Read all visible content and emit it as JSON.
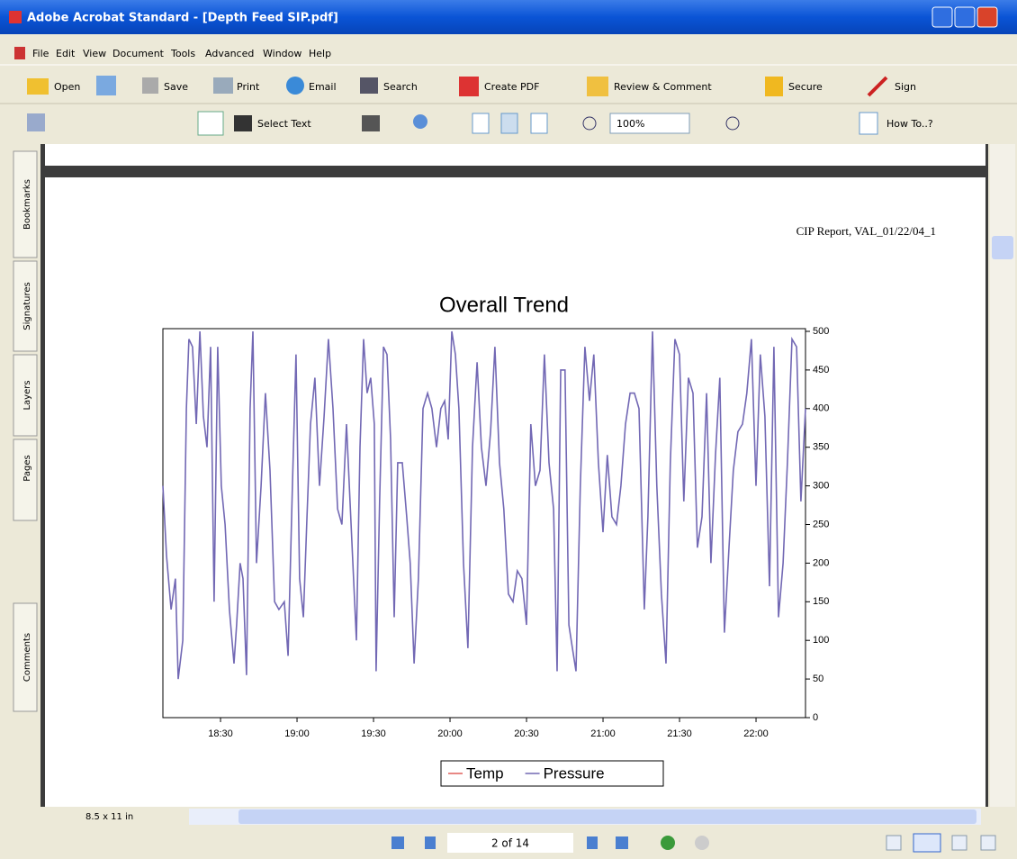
{
  "window": {
    "title": "Adobe Acrobat Standard - [Depth Feed SIP.pdf]"
  },
  "menu": {
    "items": [
      "File",
      "Edit",
      "View",
      "Document",
      "Tools",
      "Advanced",
      "Window",
      "Help"
    ]
  },
  "toolbar1": {
    "buttons": [
      "Open",
      "Save",
      "Print",
      "Email",
      "Search",
      "Create PDF",
      "Review & Comment",
      "Secure",
      "Sign"
    ]
  },
  "toolbar2": {
    "buttons": [
      "Select Text",
      "100%",
      "How To..?"
    ]
  },
  "nav_tabs": [
    "Bookmarks",
    "Signatures",
    "Layers",
    "Pages",
    "Comments"
  ],
  "document": {
    "header_text": "CIP Report,  VAL_01/22/04_1"
  },
  "status": {
    "page_size": "8.5 x 11 in",
    "page_indicator": "2 of 14"
  },
  "chart_data": {
    "type": "line",
    "title": "Overall Trend",
    "x": [
      1087.4,
      1088.8,
      1090.6,
      1092.3,
      1093.4,
      1095.2,
      1096.6,
      1097.6,
      1099.0,
      1100.5,
      1101.9,
      1103.3,
      1104.7,
      1106.1,
      1107.5,
      1108.9,
      1110.3,
      1111.8,
      1113.5,
      1115.3,
      1116.3,
      1117.7,
      1118.8,
      1120.2,
      1121.6,
      1122.7,
      1124.1,
      1125.9,
      1127.6,
      1129.4,
      1131.2,
      1132.9,
      1135.0,
      1136.5,
      1138.2,
      1139.6,
      1141.0,
      1142.5,
      1143.9,
      1145.3,
      1147.0,
      1148.8,
      1150.6,
      1152.3,
      1154.1,
      1155.9,
      1157.6,
      1159.4,
      1161.2,
      1163.3,
      1164.7,
      1166.1,
      1167.5,
      1168.9,
      1170.3,
      1171.0,
      1172.4,
      1173.9,
      1175.3,
      1176.7,
      1178.1,
      1179.5,
      1181.3,
      1183.0,
      1184.4,
      1185.9,
      1187.6,
      1189.4,
      1191.2,
      1192.9,
      1194.7,
      1196.4,
      1197.9,
      1199.3,
      1200.7,
      1202.1,
      1203.5,
      1205.3,
      1207.0,
      1208.8,
      1210.6,
      1212.3,
      1214.1,
      1215.9,
      1217.6,
      1219.4,
      1221.1,
      1222.9,
      1224.7,
      1226.4,
      1228.2,
      1230.0,
      1231.7,
      1233.5,
      1235.3,
      1237.0,
      1238.8,
      1240.6,
      1242.0,
      1243.4,
      1245.1,
      1246.6,
      1248.0,
      1249.4,
      1251.1,
      1252.9,
      1254.7,
      1256.4,
      1258.2,
      1260.0,
      1261.7,
      1263.5,
      1265.3,
      1267.0,
      1268.8,
      1270.6,
      1272.3,
      1274.1,
      1276.2,
      1277.6,
      1279.4,
      1281.1,
      1282.9,
      1284.7,
      1286.4,
      1288.2,
      1290.0,
      1291.7,
      1293.5,
      1295.3,
      1297.0,
      1298.8,
      1300.6,
      1302.3,
      1304.1,
      1305.8,
      1307.6,
      1309.4,
      1311.1,
      1312.9,
      1314.7,
      1316.4,
      1318.2,
      1320.0,
      1321.7,
      1323.5,
      1325.3,
      1327.0,
      1328.8,
      1330.6,
      1332.3,
      1334.1,
      1335.9,
      1337.6,
      1339.4
    ],
    "series": [
      {
        "name": "Temp",
        "color": "#e0605a",
        "values": [
          null,
          null,
          null,
          null,
          null,
          null,
          null,
          null,
          null,
          null,
          null,
          null,
          null,
          null,
          null,
          null,
          null,
          null,
          null,
          null,
          null,
          null,
          null,
          null,
          null,
          null,
          null,
          null,
          null,
          null,
          null,
          null,
          null,
          null,
          null,
          null,
          null,
          null,
          null,
          null,
          null,
          null,
          null,
          null,
          null,
          null,
          null,
          null,
          null,
          null,
          null,
          null,
          null,
          null,
          null,
          null,
          null,
          null,
          null,
          null,
          null,
          null,
          null,
          null,
          null,
          null,
          null,
          null,
          null,
          null,
          null,
          null,
          null,
          null,
          null,
          null,
          null,
          null,
          null,
          null,
          null,
          null,
          null,
          null,
          null,
          null,
          null,
          null,
          null,
          null,
          null,
          null,
          null,
          null,
          null,
          null,
          null,
          null,
          null,
          null,
          null,
          null,
          null,
          null,
          null,
          null,
          null,
          null,
          null,
          null,
          null,
          null,
          null,
          null,
          null,
          null,
          null,
          null,
          null,
          null,
          null,
          null,
          null,
          null,
          null,
          null,
          null,
          null,
          null,
          null,
          null,
          null,
          null,
          null,
          null,
          null,
          null,
          null,
          null,
          null,
          null,
          null,
          null,
          null,
          null,
          null,
          null,
          null,
          null,
          null,
          null,
          null,
          null,
          null,
          null
        ]
      },
      {
        "name": "Pressure",
        "color": "#7268b4",
        "values": [
          300,
          210,
          140,
          180,
          50,
          100,
          400,
          490,
          480,
          380,
          500,
          390,
          350,
          480,
          150,
          480,
          300,
          250,
          140,
          70,
          120,
          200,
          180,
          55,
          400,
          500,
          200,
          300,
          420,
          320,
          150,
          140,
          150,
          80,
          300,
          470,
          180,
          130,
          260,
          380,
          440,
          300,
          390,
          490,
          400,
          270,
          250,
          380,
          250,
          100,
          350,
          490,
          420,
          440,
          380,
          60,
          280,
          480,
          470,
          360,
          130,
          330,
          330,
          260,
          200,
          70,
          180,
          400,
          420,
          400,
          350,
          400,
          410,
          360,
          500,
          470,
          400,
          200,
          90,
          350,
          460,
          350,
          300,
          370,
          480,
          330,
          270,
          160,
          150,
          190,
          180,
          120,
          380,
          300,
          320,
          470,
          330,
          270,
          60,
          450,
          450,
          120,
          90,
          60,
          300,
          480,
          410,
          470,
          330,
          240,
          340,
          260,
          250,
          300,
          380,
          420,
          420,
          400,
          140,
          260,
          500,
          300,
          160,
          70,
          330,
          490,
          470,
          280,
          440,
          420,
          220,
          260,
          420,
          200,
          340,
          440,
          110,
          220,
          320,
          370,
          380,
          420,
          490,
          300,
          470,
          390,
          170,
          480,
          130,
          200,
          330,
          490,
          480,
          280,
          400
        ]
      }
    ],
    "xlim": [
      1087.4,
      1339.4
    ],
    "xticks": [
      {
        "value": 1110,
        "label": "18:30"
      },
      {
        "value": 1140,
        "label": "19:00"
      },
      {
        "value": 1170,
        "label": "19:30"
      },
      {
        "value": 1200,
        "label": "20:00"
      },
      {
        "value": 1230,
        "label": "20:30"
      },
      {
        "value": 1260,
        "label": "21:00"
      },
      {
        "value": 1290,
        "label": "21:30"
      },
      {
        "value": 1320,
        "label": "22:00"
      }
    ],
    "ylim": [
      0,
      500
    ],
    "yticks": [
      0,
      50,
      100,
      150,
      200,
      250,
      300,
      350,
      400,
      450,
      500
    ],
    "y_axis_side": "right",
    "grid": false,
    "legend": "bottom"
  }
}
